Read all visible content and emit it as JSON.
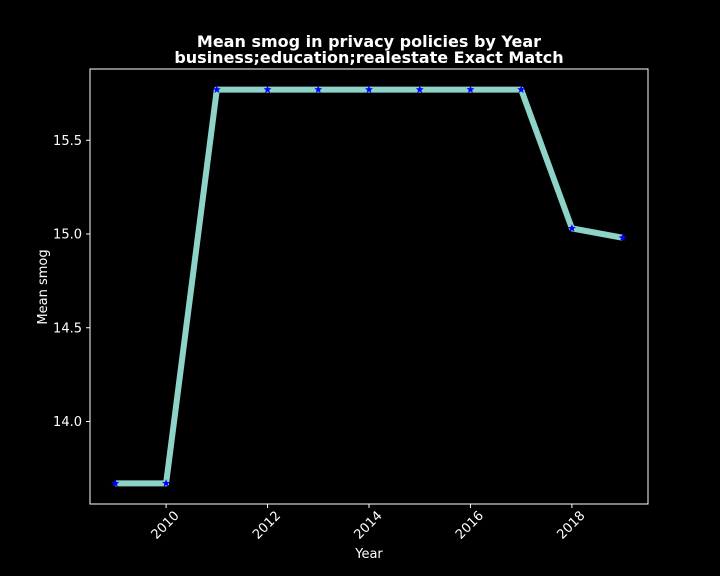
{
  "chart_data": {
    "type": "line",
    "title": "Mean smog in privacy policies by Year",
    "subtitle": "business;education;realestate Exact Match",
    "xlabel": "Year",
    "ylabel": "Mean smog",
    "x": [
      2009,
      2010,
      2011,
      2012,
      2013,
      2014,
      2015,
      2016,
      2017,
      2018,
      2019
    ],
    "series": [
      {
        "values": [
          13.67,
          13.67,
          15.77,
          15.77,
          15.77,
          15.77,
          15.77,
          15.77,
          15.77,
          15.03,
          14.98
        ]
      }
    ],
    "xlim": [
      2008.5,
      2019.5
    ],
    "ylim": [
      13.56,
      15.88
    ],
    "xticks": [
      2010,
      2012,
      2014,
      2016,
      2018
    ],
    "yticks": [
      14.0,
      14.5,
      15.0,
      15.5
    ],
    "xtick_labels": [
      "2010",
      "2012",
      "2014",
      "2016",
      "2018"
    ],
    "ytick_labels": [
      "14.0",
      "14.5",
      "15.0",
      "15.5"
    ],
    "grid": false,
    "colors": {
      "background": "#000000",
      "line": "#8dd3c7",
      "marker": "#0000ff",
      "axes": "#ffffff",
      "text": "#ffffff"
    },
    "marker_shape": "star"
  }
}
